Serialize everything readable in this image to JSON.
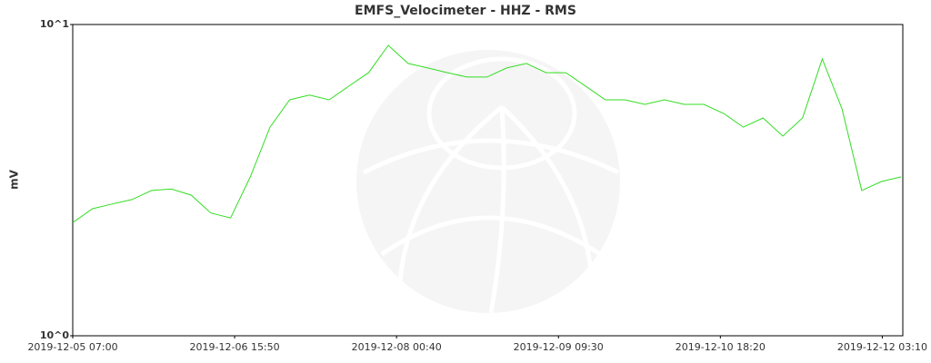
{
  "chart_data": {
    "type": "line",
    "title": "EMFS_Velocimeter - HHZ - RMS",
    "y_label": "mV",
    "yscale": "log",
    "ylim": [
      1,
      10
    ],
    "yticks": [
      {
        "value": 10,
        "label": "10^1"
      },
      {
        "value": 1,
        "label": "10^0"
      }
    ],
    "xlim": [
      "2019-12-05 07:00",
      "2019-12-12 07:20"
    ],
    "xticks": [
      "2019-12-05 07:00",
      "2019-12-06 15:50",
      "2019-12-08 00:40",
      "2019-12-09 09:30",
      "2019-12-10 18:20",
      "2019-12-12 03:10"
    ],
    "x": [
      "2019-12-05 07:00",
      "2019-12-05 11:00",
      "2019-12-05 15:00",
      "2019-12-05 19:00",
      "2019-12-05 23:00",
      "2019-12-06 03:00",
      "2019-12-06 07:00",
      "2019-12-06 11:00",
      "2019-12-06 15:00",
      "2019-12-06 19:00",
      "2019-12-06 23:00",
      "2019-12-07 03:00",
      "2019-12-07 07:00",
      "2019-12-07 11:00",
      "2019-12-07 15:00",
      "2019-12-07 19:00",
      "2019-12-07 23:00",
      "2019-12-08 03:00",
      "2019-12-08 07:00",
      "2019-12-08 11:00",
      "2019-12-08 15:00",
      "2019-12-08 19:00",
      "2019-12-08 23:00",
      "2019-12-09 03:00",
      "2019-12-09 07:00",
      "2019-12-09 11:00",
      "2019-12-09 15:00",
      "2019-12-09 19:00",
      "2019-12-09 23:00",
      "2019-12-10 03:00",
      "2019-12-10 07:00",
      "2019-12-10 11:00",
      "2019-12-10 15:00",
      "2019-12-10 19:00",
      "2019-12-10 23:00",
      "2019-12-11 03:00",
      "2019-12-11 07:00",
      "2019-12-11 11:00",
      "2019-12-11 15:00",
      "2019-12-11 19:00",
      "2019-12-11 23:00",
      "2019-12-12 03:00",
      "2019-12-12 07:00"
    ],
    "series": [
      {
        "name": "RMS",
        "color": "#33dd22",
        "values": [
          2.31,
          2.56,
          2.65,
          2.74,
          2.93,
          2.96,
          2.83,
          2.48,
          2.39,
          3.24,
          4.68,
          5.73,
          5.93,
          5.73,
          6.34,
          7.0,
          8.57,
          7.5,
          7.25,
          7.0,
          6.78,
          6.78,
          7.25,
          7.5,
          7.0,
          7.0,
          6.34,
          5.73,
          5.73,
          5.54,
          5.73,
          5.54,
          5.54,
          5.18,
          4.68,
          5.01,
          4.38,
          5.01,
          7.75,
          5.36,
          2.93,
          3.13,
          3.24
        ]
      }
    ]
  }
}
